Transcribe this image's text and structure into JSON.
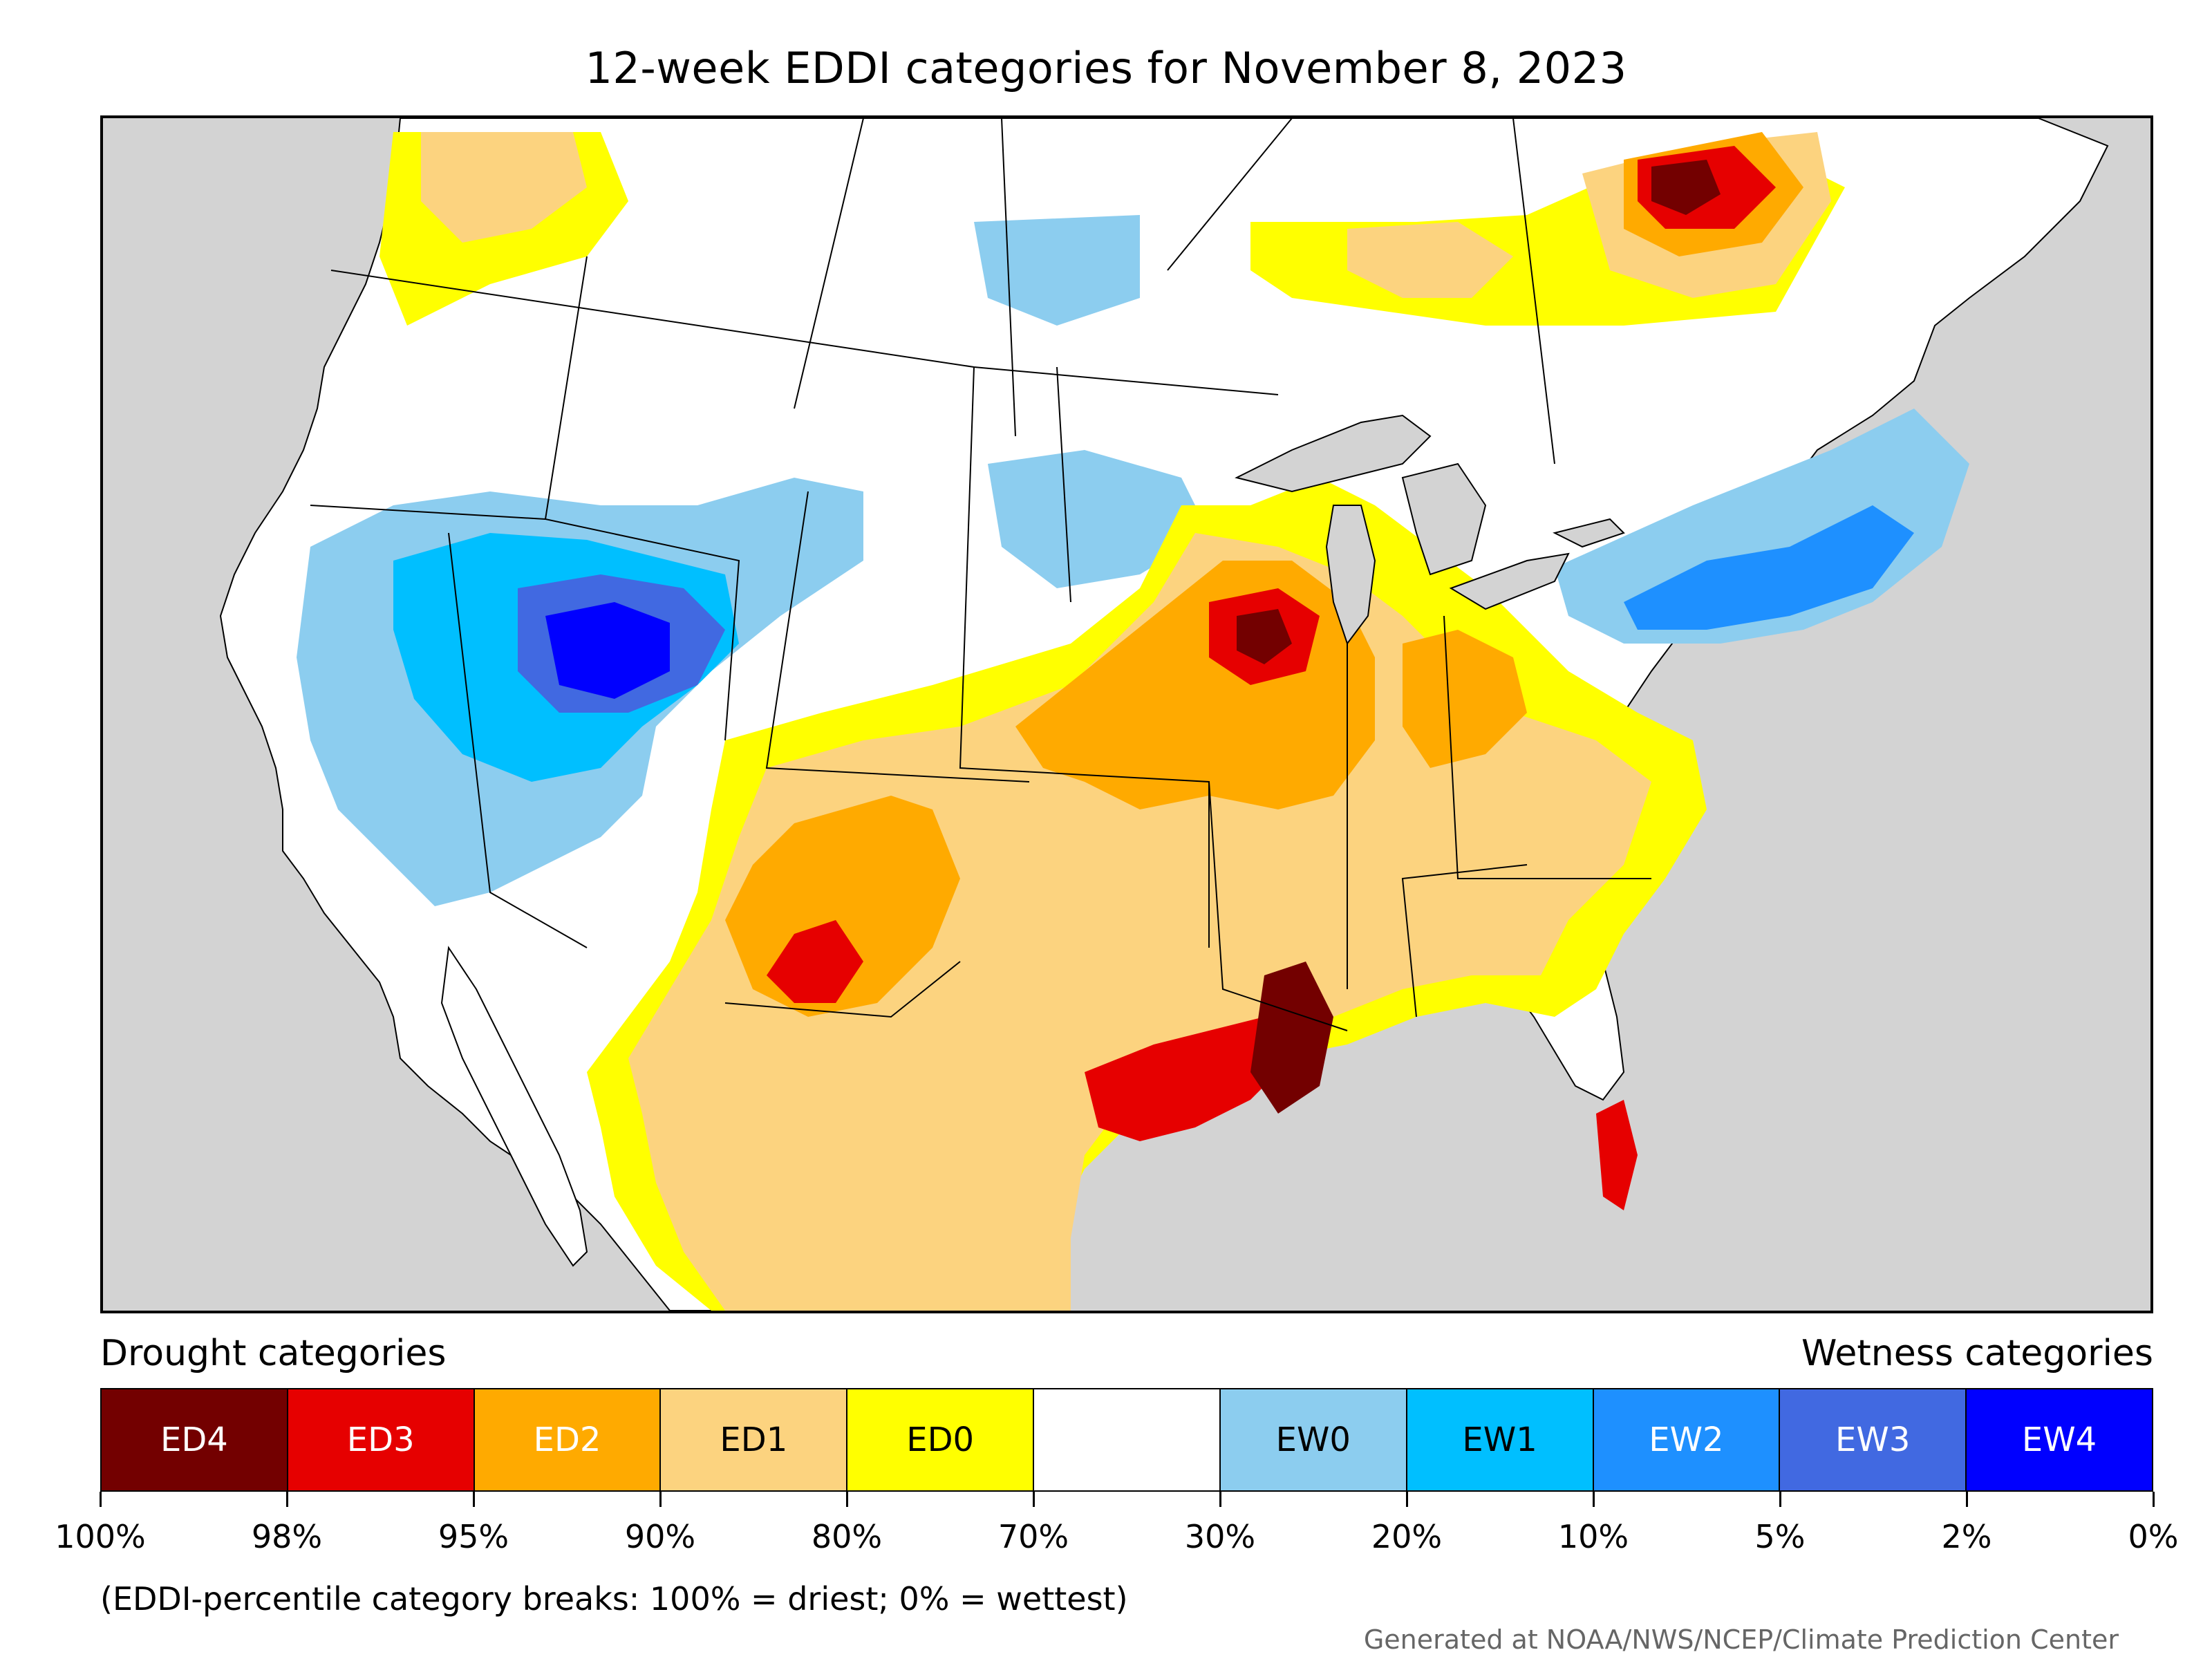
{
  "title": "12-week EDDI categories for November 8, 2023",
  "legend": {
    "drought_heading": "Drought categories",
    "wetness_heading": "Wetness categories",
    "categories": [
      {
        "label": "ED4",
        "color": "#730000",
        "text_color": "#ffffff"
      },
      {
        "label": "ED3",
        "color": "#e60000",
        "text_color": "#ffffff"
      },
      {
        "label": "ED2",
        "color": "#ffaa00",
        "text_color": "#ffffff"
      },
      {
        "label": "ED1",
        "color": "#fcd37f",
        "text_color": "#000000"
      },
      {
        "label": "ED0",
        "color": "#ffff00",
        "text_color": "#000000"
      },
      {
        "label": "",
        "color": "#ffffff",
        "text_color": "#000000"
      },
      {
        "label": "EW0",
        "color": "#8ccdef",
        "text_color": "#000000"
      },
      {
        "label": "EW1",
        "color": "#00bfff",
        "text_color": "#000000"
      },
      {
        "label": "EW2",
        "color": "#1e90ff",
        "text_color": "#ffffff"
      },
      {
        "label": "EW3",
        "color": "#4169e1",
        "text_color": "#ffffff"
      },
      {
        "label": "EW4",
        "color": "#0000ff",
        "text_color": "#ffffff"
      }
    ],
    "breaks": [
      "100%",
      "98%",
      "95%",
      "90%",
      "80%",
      "70%",
      "30%",
      "20%",
      "10%",
      "5%",
      "2%",
      "0%"
    ]
  },
  "note": "(EDDI-percentile category breaks: 100% = driest; 0% = wettest)",
  "credit": "Generated at NOAA/NWS/NCEP/Climate Prediction Center",
  "map": {
    "ocean_color": "#d3d3d3",
    "land_color": "#ffffff",
    "regions": [
      {
        "region": "Great Lakes",
        "fill": "lakes"
      },
      {
        "region": "Nevada / Utah / Idaho",
        "category": "EW4"
      },
      {
        "region": "Texas / Louisiana Gulf Coast",
        "category": "ED3"
      },
      {
        "region": "Lower Mississippi Valley",
        "category": "ED4"
      },
      {
        "region": "Iowa / Illinois",
        "category": "ED4"
      },
      {
        "region": "Southern Rockies",
        "category": "ED3"
      },
      {
        "region": "Ontario / Quebec",
        "category": "ED4"
      },
      {
        "region": "Northeast / New England",
        "category": "EW2"
      },
      {
        "region": "Florida peninsula",
        "category": "ED3"
      }
    ]
  }
}
